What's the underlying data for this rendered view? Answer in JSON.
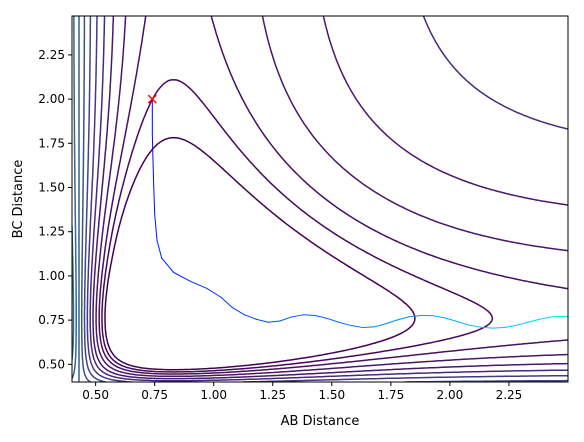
{
  "chart_data": {
    "type": "contour",
    "title": "",
    "xlabel": "AB Distance",
    "ylabel": "BC Distance",
    "xlim": [
      0.4,
      2.5
    ],
    "ylim": [
      0.4,
      2.47
    ],
    "xticks": [
      0.5,
      0.75,
      1.0,
      1.25,
      1.5,
      1.75,
      2.0,
      2.25
    ],
    "xtick_labels": [
      "0.50",
      "0.75",
      "1.00",
      "1.25",
      "1.50",
      "1.75",
      "2.00",
      "2.25"
    ],
    "yticks": [
      0.5,
      0.75,
      1.0,
      1.25,
      1.5,
      1.75,
      2.0,
      2.25
    ],
    "ytick_labels": [
      "0.50",
      "0.75",
      "1.00",
      "1.25",
      "1.50",
      "1.75",
      "2.00",
      "2.25"
    ],
    "grid": false,
    "colormap": "viridis",
    "start_marker": {
      "x": 0.74,
      "y": 2.0,
      "symbol": "x",
      "color": "#ff0000"
    },
    "trajectory": {
      "color_start": "#0000ff",
      "color_end": "#00e5ff",
      "points": [
        [
          0.74,
          2.0
        ],
        [
          0.74,
          1.8
        ],
        [
          0.745,
          1.55
        ],
        [
          0.75,
          1.35
        ],
        [
          0.76,
          1.2
        ],
        [
          0.78,
          1.1
        ],
        [
          0.83,
          1.02
        ],
        [
          0.9,
          0.97
        ],
        [
          0.97,
          0.93
        ],
        [
          1.03,
          0.88
        ],
        [
          1.08,
          0.82
        ],
        [
          1.13,
          0.78
        ],
        [
          1.18,
          0.755
        ],
        [
          1.23,
          0.738
        ],
        [
          1.28,
          0.745
        ],
        [
          1.33,
          0.768
        ],
        [
          1.38,
          0.78
        ],
        [
          1.43,
          0.776
        ],
        [
          1.48,
          0.76
        ],
        [
          1.53,
          0.738
        ],
        [
          1.58,
          0.72
        ],
        [
          1.63,
          0.708
        ],
        [
          1.68,
          0.712
        ],
        [
          1.73,
          0.73
        ],
        [
          1.78,
          0.752
        ],
        [
          1.83,
          0.77
        ],
        [
          1.88,
          0.777
        ],
        [
          1.93,
          0.775
        ],
        [
          1.98,
          0.762
        ],
        [
          2.03,
          0.742
        ],
        [
          2.08,
          0.722
        ],
        [
          2.13,
          0.71
        ],
        [
          2.18,
          0.705
        ],
        [
          2.23,
          0.708
        ],
        [
          2.28,
          0.72
        ],
        [
          2.33,
          0.738
        ],
        [
          2.38,
          0.755
        ],
        [
          2.43,
          0.768
        ],
        [
          2.48,
          0.772
        ],
        [
          2.5,
          0.77
        ]
      ]
    },
    "contour_levels": [
      {
        "c": 0.8,
        "color": "#440154"
      },
      {
        "c": 0.9,
        "color": "#46085c"
      },
      {
        "c": 1.0,
        "color": "#471063"
      },
      {
        "c": 1.12,
        "color": "#481769"
      },
      {
        "c": 1.25,
        "color": "#48186a"
      },
      {
        "c": 1.38,
        "color": "#472a7a"
      },
      {
        "c": 1.52,
        "color": "#443983"
      },
      {
        "c": 1.67,
        "color": "#3f4788"
      },
      {
        "c": 1.83,
        "color": "#3b528b"
      },
      {
        "c": 2.0,
        "color": "#355f8d"
      },
      {
        "c": 2.18,
        "color": "#31688e"
      },
      {
        "c": 2.37,
        "color": "#2c728e"
      },
      {
        "c": 2.57,
        "color": "#287c8e"
      },
      {
        "c": 2.78,
        "color": "#24868e"
      },
      {
        "c": 3.0,
        "color": "#21918c"
      },
      {
        "c": 3.25,
        "color": "#1f9a8a"
      },
      {
        "c": 3.52,
        "color": "#22a884"
      },
      {
        "c": 3.82,
        "color": "#2ab07f"
      },
      {
        "c": 4.15,
        "color": "#35b779"
      },
      {
        "c": 4.52,
        "color": "#44bf70"
      },
      {
        "c": 4.93,
        "color": "#54c568"
      },
      {
        "c": 5.4,
        "color": "#65cb5e"
      },
      {
        "c": 5.95,
        "color": "#7ad151"
      },
      {
        "c": 6.6,
        "color": "#8fd744"
      },
      {
        "c": 7.4,
        "color": "#a5db36"
      },
      {
        "c": 8.4,
        "color": "#bddf26"
      },
      {
        "c": 9.6,
        "color": "#d2e21b"
      },
      {
        "c": 11.0,
        "color": "#e5e419"
      },
      {
        "c": 12.8,
        "color": "#fde725"
      },
      {
        "c": 15.0,
        "color": "#fde725"
      }
    ]
  }
}
